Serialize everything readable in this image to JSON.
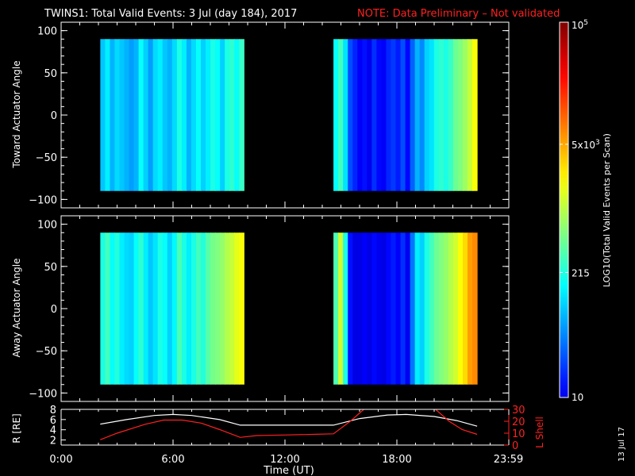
{
  "header": {
    "title": "TWINS1: Total Valid Events:  3 Jul (day 184), 2017",
    "note": "NOTE: Data Preliminary – Not validated",
    "note_color": "#ff2020"
  },
  "footer": {
    "generated_date": "13 Jul 17"
  },
  "chart_data": [
    {
      "type": "heatmap",
      "ylabel": "Toward Actuator Angle",
      "ylim": [
        -110,
        110
      ],
      "yticks": [
        "100",
        "50",
        "0",
        "−50",
        "−100"
      ],
      "ytick_values": [
        100,
        50,
        0,
        -50,
        -100
      ],
      "xlim": [
        0,
        24
      ],
      "y_range": [
        -90,
        90
      ],
      "segments": [
        {
          "t_start": 2.1,
          "t_end": 9.8,
          "levels": [
            0.32,
            0.36,
            0.3,
            0.34,
            0.32,
            0.3,
            0.28,
            0.3,
            0.38,
            0.33,
            0.28,
            0.34,
            0.36,
            0.32,
            0.3,
            0.34,
            0.4,
            0.36,
            0.3,
            0.34,
            0.38,
            0.33,
            0.36,
            0.4,
            0.38,
            0.33,
            0.4,
            0.42,
            0.38,
            0.43
          ]
        },
        {
          "t_start": 14.6,
          "t_end": 22.3,
          "levels": [
            0.38,
            0.44,
            0.35,
            0.2,
            0.16,
            0.12,
            0.14,
            0.11,
            0.17,
            0.13,
            0.12,
            0.16,
            0.18,
            0.15,
            0.2,
            0.13,
            0.22,
            0.3,
            0.26,
            0.33,
            0.35,
            0.4,
            0.42,
            0.4,
            0.43,
            0.48,
            0.5,
            0.53,
            0.57,
            0.62
          ]
        }
      ]
    },
    {
      "type": "heatmap",
      "ylabel": "Away Actuator Angle",
      "ylim": [
        -110,
        110
      ],
      "yticks": [
        "100",
        "50",
        "0",
        "−50",
        "−100"
      ],
      "ytick_values": [
        100,
        50,
        0,
        -50,
        -100
      ],
      "xlim": [
        0,
        24
      ],
      "y_range": [
        -90,
        90
      ],
      "segments": [
        {
          "t_start": 2.1,
          "t_end": 9.8,
          "levels": [
            0.4,
            0.44,
            0.38,
            0.41,
            0.36,
            0.34,
            0.33,
            0.38,
            0.42,
            0.36,
            0.32,
            0.35,
            0.4,
            0.38,
            0.33,
            0.37,
            0.45,
            0.4,
            0.36,
            0.4,
            0.44,
            0.41,
            0.46,
            0.49,
            0.5,
            0.52,
            0.55,
            0.57,
            0.6,
            0.62
          ]
        },
        {
          "t_start": 14.6,
          "t_end": 22.3,
          "levels": [
            0.45,
            0.58,
            0.4,
            0.14,
            0.1,
            0.1,
            0.12,
            0.1,
            0.13,
            0.11,
            0.1,
            0.13,
            0.15,
            0.12,
            0.17,
            0.11,
            0.24,
            0.36,
            0.33,
            0.4,
            0.44,
            0.48,
            0.5,
            0.52,
            0.55,
            0.58,
            0.62,
            0.66,
            0.72,
            0.74
          ]
        }
      ]
    },
    {
      "type": "line",
      "xlim": [
        0,
        24
      ],
      "xticks": [
        "0:00",
        "6:00",
        "12:00",
        "18:00",
        "23:59"
      ],
      "xtick_values": [
        0,
        6,
        12,
        18,
        23.98
      ],
      "xlabel": "Time (UT)",
      "left_axis": {
        "label": "R [RE]",
        "ylim": [
          1,
          8
        ],
        "ticks": [
          "8",
          "6",
          "4",
          "2"
        ],
        "tick_values": [
          8,
          6,
          4,
          2
        ]
      },
      "right_axis": {
        "label": "L Shell",
        "ylim": [
          0,
          30
        ],
        "ticks": [
          "30",
          "20",
          "10",
          "0"
        ],
        "tick_values": [
          30,
          20,
          10,
          0
        ],
        "color": "#ff2020"
      },
      "series": [
        {
          "axis": "left",
          "color": "#ffffff",
          "x": [
            2.1,
            3.5,
            5.0,
            6.0,
            7.0,
            8.5,
            9.6,
            12.0,
            14.6,
            16.0,
            17.5,
            18.5,
            20.0,
            21.2,
            22.3
          ],
          "y": [
            5.1,
            6.0,
            6.8,
            7.0,
            6.8,
            6.0,
            4.9,
            4.9,
            4.9,
            6.2,
            6.9,
            7.0,
            6.6,
            5.8,
            4.7
          ]
        },
        {
          "axis": "right",
          "color": "#ff2020",
          "x": [
            2.1,
            3.0,
            4.5,
            5.5,
            6.5,
            7.5,
            8.5,
            9.6,
            10.5,
            12.0,
            13.5,
            14.6,
            15.5,
            16.3
          ],
          "y": [
            4.5,
            10.0,
            17.5,
            21.0,
            21.0,
            18.5,
            13.0,
            6.5,
            8.0,
            8.5,
            9.0,
            9.5,
            20.0,
            31.0
          ]
        },
        {
          "axis": "right",
          "color": "#ff2020",
          "x": [
            20.0,
            20.8,
            21.5,
            22.3
          ],
          "y": [
            31.0,
            20.0,
            13.0,
            9.0
          ]
        }
      ]
    },
    {
      "type": "colorbar",
      "label": "LOG10(Total Valid Events per Scan)",
      "ticks": [
        "10",
        "215",
        "5x10^3",
        "10^5"
      ],
      "tick_values": [
        10,
        215,
        5000,
        100000
      ]
    }
  ]
}
